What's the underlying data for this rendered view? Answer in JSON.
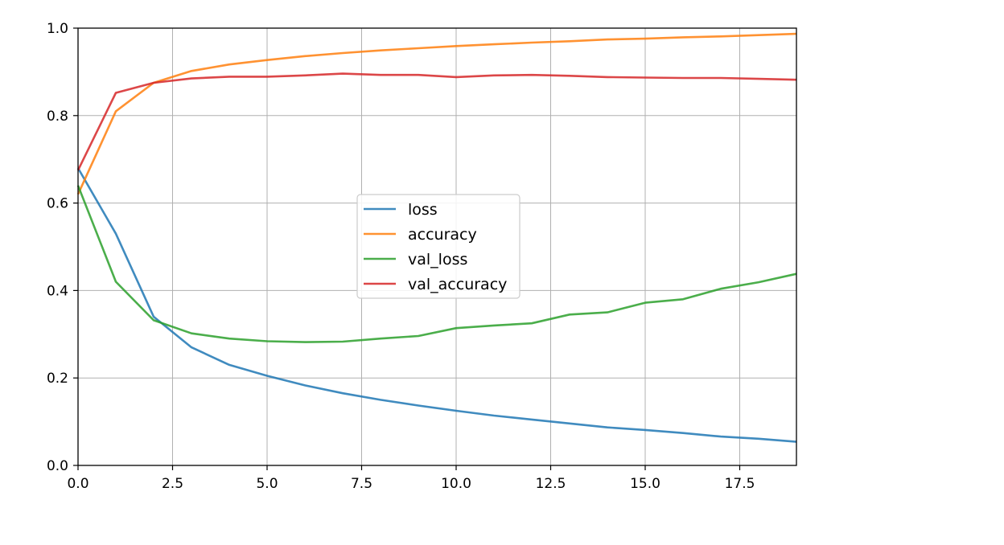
{
  "chart_data": {
    "type": "line",
    "title": "",
    "xlabel": "",
    "ylabel": "",
    "xlim": [
      0,
      19
    ],
    "ylim": [
      0,
      1.0
    ],
    "x_ticks": [
      0.0,
      2.5,
      5.0,
      7.5,
      10.0,
      12.5,
      15.0,
      17.5
    ],
    "x_tick_labels": [
      "0.0",
      "2.5",
      "5.0",
      "7.5",
      "10.0",
      "12.5",
      "15.0",
      "17.5"
    ],
    "y_ticks": [
      0.0,
      0.2,
      0.4,
      0.6,
      0.8,
      1.0
    ],
    "y_tick_labels": [
      "0.0",
      "0.2",
      "0.4",
      "0.6",
      "0.8",
      "1.0"
    ],
    "grid": true,
    "legend_position": "center",
    "x": [
      0,
      1,
      2,
      3,
      4,
      5,
      6,
      7,
      8,
      9,
      10,
      11,
      12,
      13,
      14,
      15,
      16,
      17,
      18,
      19
    ],
    "series": [
      {
        "name": "loss",
        "color": "#1f77b4",
        "values": [
          0.68,
          0.53,
          0.34,
          0.27,
          0.23,
          0.205,
          0.183,
          0.165,
          0.15,
          0.137,
          0.125,
          0.114,
          0.105,
          0.096,
          0.087,
          0.081,
          0.074,
          0.066,
          0.061,
          0.054
        ]
      },
      {
        "name": "accuracy",
        "color": "#ff7f0e",
        "values": [
          0.62,
          0.81,
          0.875,
          0.902,
          0.917,
          0.927,
          0.936,
          0.943,
          0.949,
          0.954,
          0.959,
          0.963,
          0.967,
          0.97,
          0.974,
          0.976,
          0.979,
          0.981,
          0.984,
          0.987
        ]
      },
      {
        "name": "val_loss",
        "color": "#2ca02c",
        "values": [
          0.64,
          0.42,
          0.332,
          0.302,
          0.29,
          0.284,
          0.282,
          0.283,
          0.29,
          0.296,
          0.314,
          0.32,
          0.325,
          0.345,
          0.35,
          0.372,
          0.38,
          0.404,
          0.419,
          0.438
        ]
      },
      {
        "name": "val_accuracy",
        "color": "#d62728",
        "values": [
          0.675,
          0.852,
          0.875,
          0.885,
          0.889,
          0.889,
          0.892,
          0.896,
          0.893,
          0.893,
          0.888,
          0.892,
          0.893,
          0.891,
          0.888,
          0.887,
          0.886,
          0.886,
          0.884,
          0.882
        ]
      }
    ]
  }
}
